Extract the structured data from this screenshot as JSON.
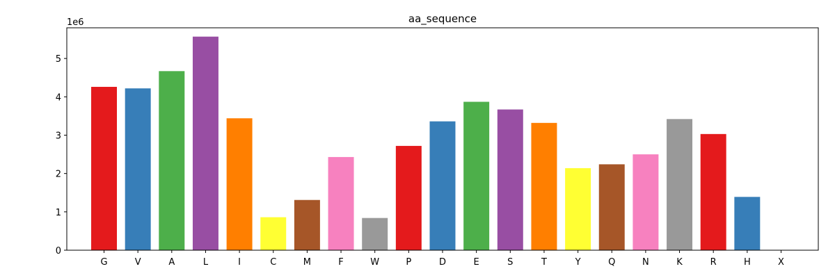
{
  "chart_data": {
    "type": "bar",
    "title": "aa_sequence",
    "xlabel": "",
    "ylabel": "",
    "scale_label": "1e6",
    "ylim": [
      0,
      5800000
    ],
    "yticks": [
      0,
      1,
      2,
      3,
      4,
      5
    ],
    "categories": [
      "G",
      "V",
      "A",
      "L",
      "I",
      "C",
      "M",
      "F",
      "W",
      "P",
      "D",
      "E",
      "S",
      "T",
      "Y",
      "Q",
      "N",
      "K",
      "R",
      "H",
      "X"
    ],
    "values": [
      4260000,
      4220000,
      4670000,
      5570000,
      3440000,
      860000,
      1310000,
      2430000,
      840000,
      2720000,
      3360000,
      3870000,
      3670000,
      3320000,
      2140000,
      2240000,
      2500000,
      3420000,
      3030000,
      1390000,
      0
    ],
    "colors": [
      "#e41a1c",
      "#377eb8",
      "#4daf4a",
      "#984ea3",
      "#ff7f00",
      "#ffff33",
      "#a65628",
      "#f781bf",
      "#999999",
      "#e41a1c",
      "#377eb8",
      "#4daf4a",
      "#984ea3",
      "#ff7f00",
      "#ffff33",
      "#a65628",
      "#f781bf",
      "#999999",
      "#e41a1c",
      "#377eb8",
      "#4daf4a"
    ],
    "grid": false,
    "legend": "none"
  }
}
